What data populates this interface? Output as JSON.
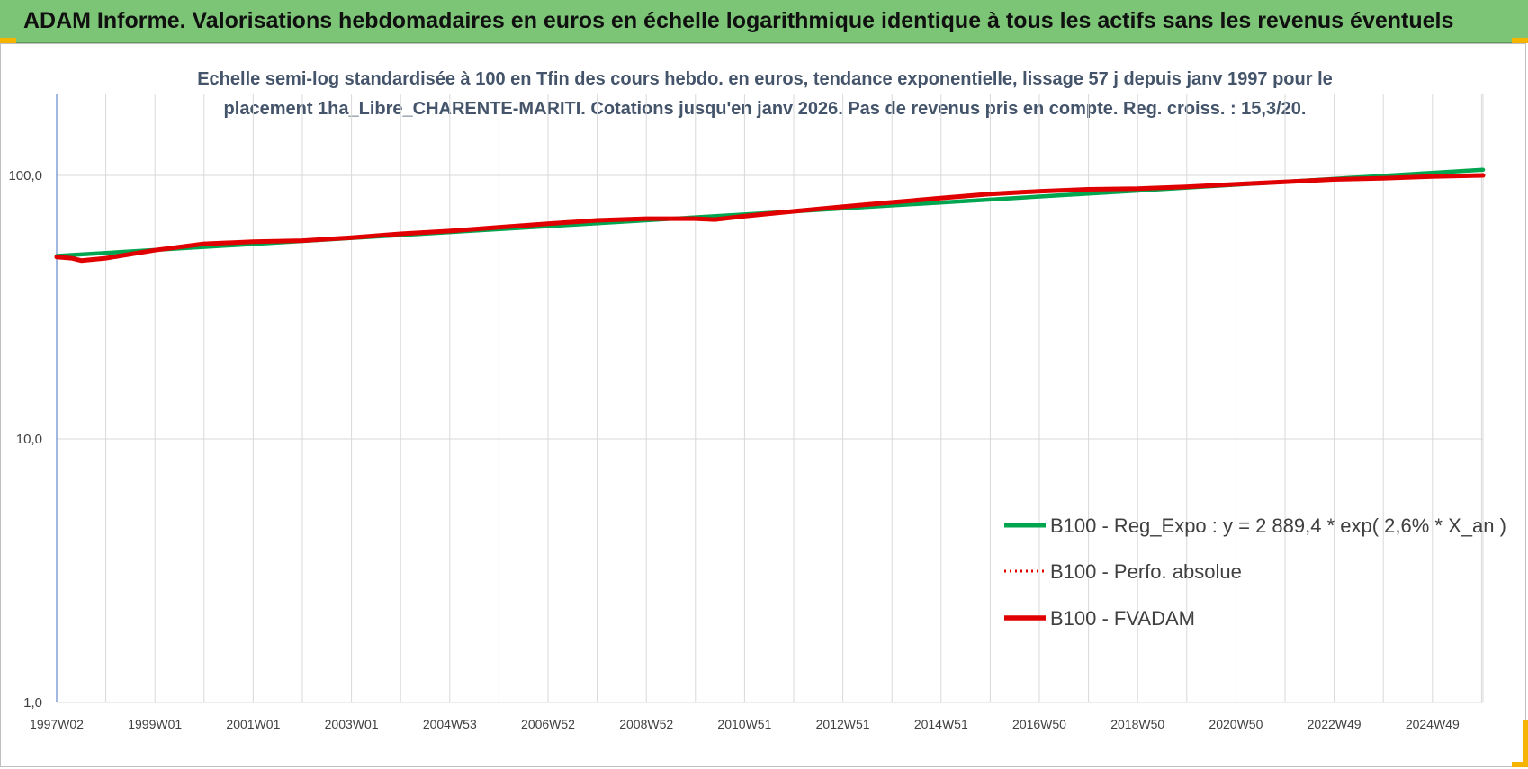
{
  "header": {
    "title": "ADAM Informe. Valorisations hebdomadaires en euros en échelle logarithmique identique à tous les actifs sans les revenus éventuels"
  },
  "colors": {
    "header_bg": "#7dc576",
    "reg_expo": "#00a550",
    "perfo": "#e00000",
    "fvadam": "#e00000",
    "axis": "#4472c4",
    "grid": "#d9d9d9",
    "title_text": "#44546a"
  },
  "chart_data": {
    "type": "line",
    "title_line1": "Echelle semi-log standardisée à 100 en Tfin des cours hebdo. en euros, tendance exponentielle, lissage 57 j depuis janv 1997 pour le",
    "title_line2": "placement 1ha_Libre_CHARENTE-MARITI. Cotations jusqu'en janv 2026. Pas de revenus pris en compte. Reg. croiss. : 15,3/20.",
    "y_scale": "log",
    "ylim": [
      1,
      200
    ],
    "y_ticks": [
      {
        "value": 100,
        "label": "100,0"
      },
      {
        "value": 10,
        "label": "10,0"
      },
      {
        "value": 1,
        "label": "1,0"
      }
    ],
    "x_ticks": [
      "1997W02",
      "1999W01",
      "2001W01",
      "2003W01",
      "2004W53",
      "2006W52",
      "2008W52",
      "2010W51",
      "2012W51",
      "2014W51",
      "2016W50",
      "2018W50",
      "2020W50",
      "2022W49",
      "2024W49"
    ],
    "xlim": [
      1997.0,
      2026.05
    ],
    "grid": true,
    "legend_position": "bottom-right",
    "series": [
      {
        "name": "B100 - Reg_Expo : y = 2 889,4 * exp( 2,6% *  X_an )",
        "style": "solid",
        "color": "#00a550",
        "points": [
          [
            1997.0,
            49.5
          ],
          [
            2026.05,
            105.0
          ]
        ]
      },
      {
        "name": "B100 - Perfo. absolue",
        "style": "dotted",
        "color": "#e00000",
        "points": [
          [
            1997.0,
            49.0
          ],
          [
            1997.3,
            48.5
          ],
          [
            1997.5,
            47.5
          ],
          [
            1998.0,
            48.5
          ],
          [
            1999.0,
            52
          ],
          [
            2000.0,
            55
          ],
          [
            2001.0,
            56
          ],
          [
            2002.0,
            56.5
          ],
          [
            2003.0,
            58
          ],
          [
            2004.0,
            60
          ],
          [
            2005.0,
            61.5
          ],
          [
            2006.0,
            63.5
          ],
          [
            2007.0,
            65.5
          ],
          [
            2008.0,
            67.5
          ],
          [
            2009.0,
            68.5
          ],
          [
            2010.0,
            68.5
          ],
          [
            2010.4,
            68.0
          ],
          [
            2011.0,
            70
          ],
          [
            2012.0,
            73
          ],
          [
            2013.0,
            76
          ],
          [
            2014.0,
            79
          ],
          [
            2015.0,
            82
          ],
          [
            2016.0,
            85
          ],
          [
            2017.0,
            87
          ],
          [
            2018.0,
            88.5
          ],
          [
            2019.0,
            89
          ],
          [
            2020.0,
            90.5
          ],
          [
            2021.0,
            92.5
          ],
          [
            2022.0,
            94.5
          ],
          [
            2023.0,
            96.5
          ],
          [
            2024.0,
            97.5
          ],
          [
            2025.0,
            99
          ],
          [
            2026.05,
            100
          ]
        ]
      },
      {
        "name": "B100 - FVADAM",
        "style": "solid",
        "color": "#e00000",
        "points": [
          [
            1997.0,
            49.0
          ],
          [
            1997.3,
            48.5
          ],
          [
            1997.5,
            47.5
          ],
          [
            1998.0,
            48.5
          ],
          [
            1999.0,
            52
          ],
          [
            2000.0,
            55
          ],
          [
            2001.0,
            56
          ],
          [
            2002.0,
            56.5
          ],
          [
            2003.0,
            58
          ],
          [
            2004.0,
            60
          ],
          [
            2005.0,
            61.5
          ],
          [
            2006.0,
            63.5
          ],
          [
            2007.0,
            65.5
          ],
          [
            2008.0,
            67.5
          ],
          [
            2009.0,
            68.5
          ],
          [
            2010.0,
            68.5
          ],
          [
            2010.4,
            68.0
          ],
          [
            2011.0,
            70
          ],
          [
            2012.0,
            73
          ],
          [
            2013.0,
            76
          ],
          [
            2014.0,
            79
          ],
          [
            2015.0,
            82
          ],
          [
            2016.0,
            85
          ],
          [
            2017.0,
            87
          ],
          [
            2018.0,
            88.5
          ],
          [
            2019.0,
            89
          ],
          [
            2020.0,
            90.5
          ],
          [
            2021.0,
            92.5
          ],
          [
            2022.0,
            94.5
          ],
          [
            2023.0,
            96.5
          ],
          [
            2024.0,
            97.5
          ],
          [
            2025.0,
            99
          ],
          [
            2026.05,
            100
          ]
        ]
      }
    ]
  }
}
